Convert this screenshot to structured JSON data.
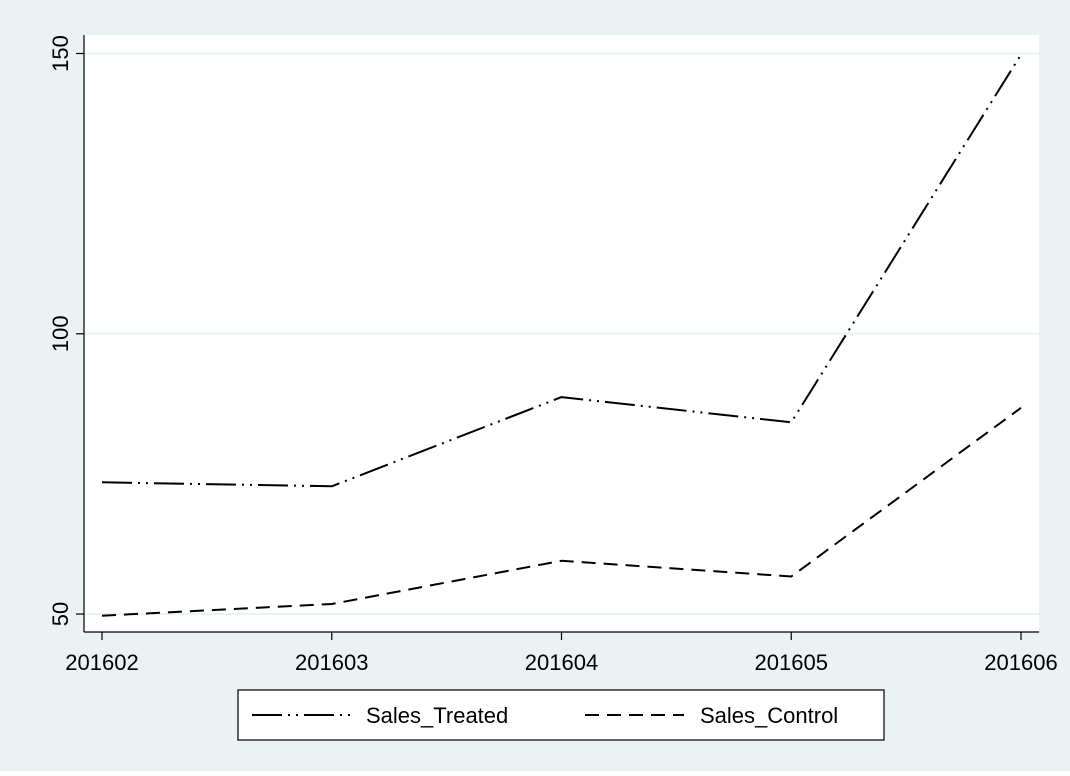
{
  "chart_data": {
    "type": "line",
    "categories": [
      "201602",
      "201603",
      "201604",
      "201605",
      "201606"
    ],
    "series": [
      {
        "name": "Sales_Treated",
        "values": [
          73.5,
          72.8,
          88.7,
          84.2,
          149.8
        ],
        "style": "long-dash-dot-dot"
      },
      {
        "name": "Sales_Control",
        "values": [
          49.7,
          51.8,
          59.5,
          56.7,
          86.8
        ],
        "style": "dashed"
      }
    ],
    "yticks": [
      50,
      100,
      150
    ],
    "ylim": [
      46.8,
      153.3
    ],
    "title": "",
    "xlabel": "",
    "ylabel": "",
    "grid": true,
    "legend_position": "bottom",
    "colors": {
      "outer_background": "#eaf2f3",
      "plot_background": "#ffffff",
      "gridline": "#eaf2f3",
      "line": "#000000"
    }
  }
}
